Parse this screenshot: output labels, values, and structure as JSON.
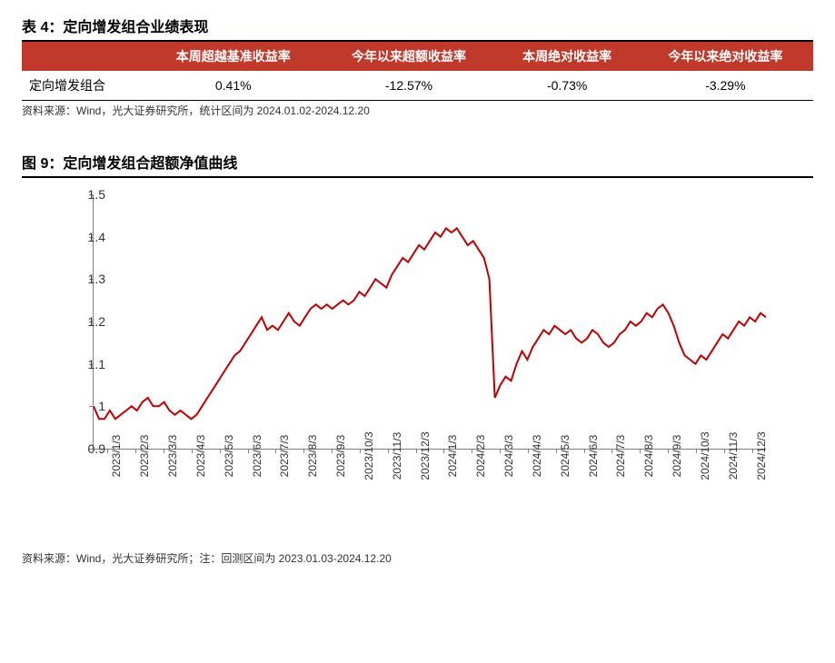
{
  "table": {
    "title": "表 4：定向增发组合业绩表现",
    "header_bg": "#c0392b",
    "header_color": "#ffffff",
    "columns": [
      "",
      "本周超越基准收益率",
      "今年以来超额收益率",
      "本周绝对收益率",
      "今年以来绝对收益率"
    ],
    "row_label": "定向增发组合",
    "row_values": [
      "0.41%",
      "-12.57%",
      "-0.73%",
      "-3.29%"
    ],
    "source": "资料来源：Wind，光大证券研究所，统计区间为 2024.01.02-2024.12.20"
  },
  "chart": {
    "title": "图 9：定向增发组合超额净值曲线",
    "type": "line",
    "line_color": "#c00000",
    "line_width": 2,
    "background_color": "#ffffff",
    "axis_color": "#808080",
    "ylim": [
      0.9,
      1.5
    ],
    "yticks": [
      0.9,
      1,
      1.1,
      1.2,
      1.3,
      1.4,
      1.5
    ],
    "ytick_labels": [
      "0.9",
      "1",
      "1.1",
      "1.2",
      "1.3",
      "1.4",
      "1.5"
    ],
    "xtick_labels": [
      "2023/1/3",
      "2023/2/3",
      "2023/3/3",
      "2023/4/3",
      "2023/5/3",
      "2023/6/3",
      "2023/7/3",
      "2023/8/3",
      "2023/9/3",
      "2023/10/3",
      "2023/11/3",
      "2023/12/3",
      "2024/1/3",
      "2024/2/3",
      "2024/3/3",
      "2024/4/3",
      "2024/5/3",
      "2024/6/3",
      "2024/7/3",
      "2024/8/3",
      "2024/9/3",
      "2024/10/3",
      "2024/11/3",
      "2024/12/3"
    ],
    "x_count": 24,
    "label_fontsize": 14,
    "values": [
      1.0,
      0.97,
      0.97,
      0.99,
      0.97,
      0.98,
      0.99,
      1.0,
      0.99,
      1.01,
      1.02,
      1.0,
      1.0,
      1.01,
      0.99,
      0.98,
      0.99,
      0.98,
      0.97,
      0.98,
      1.0,
      1.02,
      1.04,
      1.06,
      1.08,
      1.1,
      1.12,
      1.13,
      1.15,
      1.17,
      1.19,
      1.21,
      1.18,
      1.19,
      1.18,
      1.2,
      1.22,
      1.2,
      1.19,
      1.21,
      1.23,
      1.24,
      1.23,
      1.24,
      1.23,
      1.24,
      1.25,
      1.24,
      1.25,
      1.27,
      1.26,
      1.28,
      1.3,
      1.29,
      1.28,
      1.31,
      1.33,
      1.35,
      1.34,
      1.36,
      1.38,
      1.37,
      1.39,
      1.41,
      1.4,
      1.42,
      1.41,
      1.42,
      1.4,
      1.38,
      1.39,
      1.37,
      1.35,
      1.3,
      1.02,
      1.05,
      1.07,
      1.06,
      1.1,
      1.13,
      1.11,
      1.14,
      1.16,
      1.18,
      1.17,
      1.19,
      1.18,
      1.17,
      1.18,
      1.16,
      1.15,
      1.16,
      1.18,
      1.17,
      1.15,
      1.14,
      1.15,
      1.17,
      1.18,
      1.2,
      1.19,
      1.2,
      1.22,
      1.21,
      1.23,
      1.24,
      1.22,
      1.19,
      1.15,
      1.12,
      1.11,
      1.1,
      1.12,
      1.11,
      1.13,
      1.15,
      1.17,
      1.16,
      1.18,
      1.2,
      1.19,
      1.21,
      1.2,
      1.22,
      1.21
    ],
    "source": "资料来源：Wind，光大证券研究所；注：回测区间为 2023.01.03-2024.12.20"
  }
}
